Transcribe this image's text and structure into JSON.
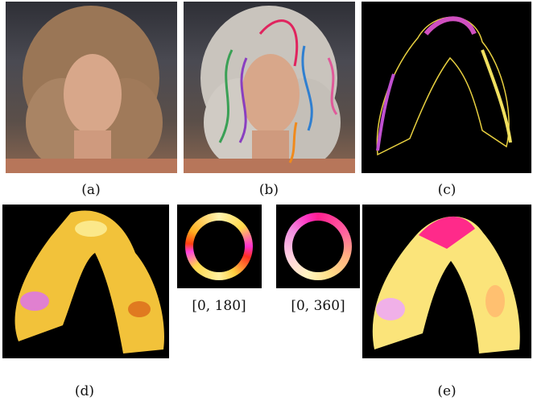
{
  "captions": {
    "a": "(a)",
    "b": "(b)",
    "c": "(c)",
    "d": "(d)",
    "e": "(e)"
  },
  "ranges": {
    "first": "[0, 180]",
    "second": "[0, 360]"
  }
}
